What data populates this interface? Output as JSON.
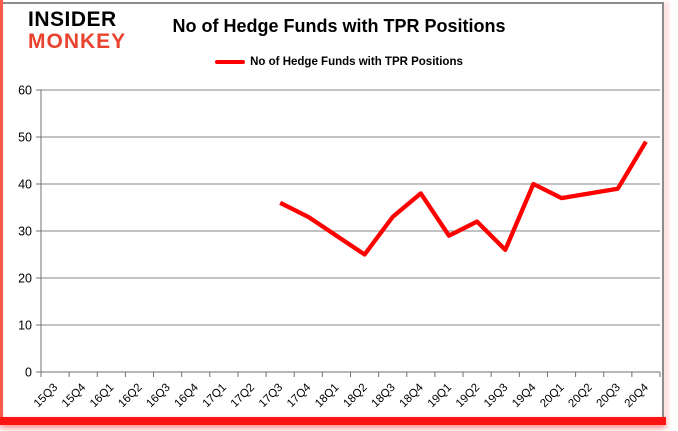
{
  "header": {
    "logo": {
      "line1": "INSIDER",
      "line2": "MONKEY",
      "brand_color": "#e8432f"
    },
    "title": "No of Hedge Funds with TPR Positions",
    "legend": {
      "label": "No of Hedge Funds with TPR Positions",
      "swatch_color": "#ff0000"
    }
  },
  "chart_data": {
    "type": "line",
    "title": "No of Hedge Funds with TPR Positions",
    "categories": [
      "15Q3",
      "15Q4",
      "16Q1",
      "16Q2",
      "16Q3",
      "16Q4",
      "17Q1",
      "17Q2",
      "17Q3",
      "17Q4",
      "18Q1",
      "18Q2",
      "18Q3",
      "18Q4",
      "19Q1",
      "19Q2",
      "19Q3",
      "19Q4",
      "20Q1",
      "20Q2",
      "20Q3",
      "20Q4"
    ],
    "series": [
      {
        "name": "No of Hedge Funds with TPR Positions",
        "color": "#ff0000",
        "values": [
          null,
          null,
          null,
          null,
          null,
          null,
          null,
          null,
          36,
          33,
          29,
          25,
          33,
          38,
          29,
          32,
          26,
          40,
          37,
          38,
          39,
          49
        ]
      }
    ],
    "xlabel": "",
    "ylabel": "",
    "ylim": [
      0,
      60
    ],
    "yticks": [
      0,
      10,
      20,
      30,
      40,
      50,
      60
    ],
    "grid": true,
    "legend_position": "top-center",
    "colors": {
      "gridline": "#848484",
      "axis": "#707070",
      "tick_text": "#000000"
    }
  }
}
